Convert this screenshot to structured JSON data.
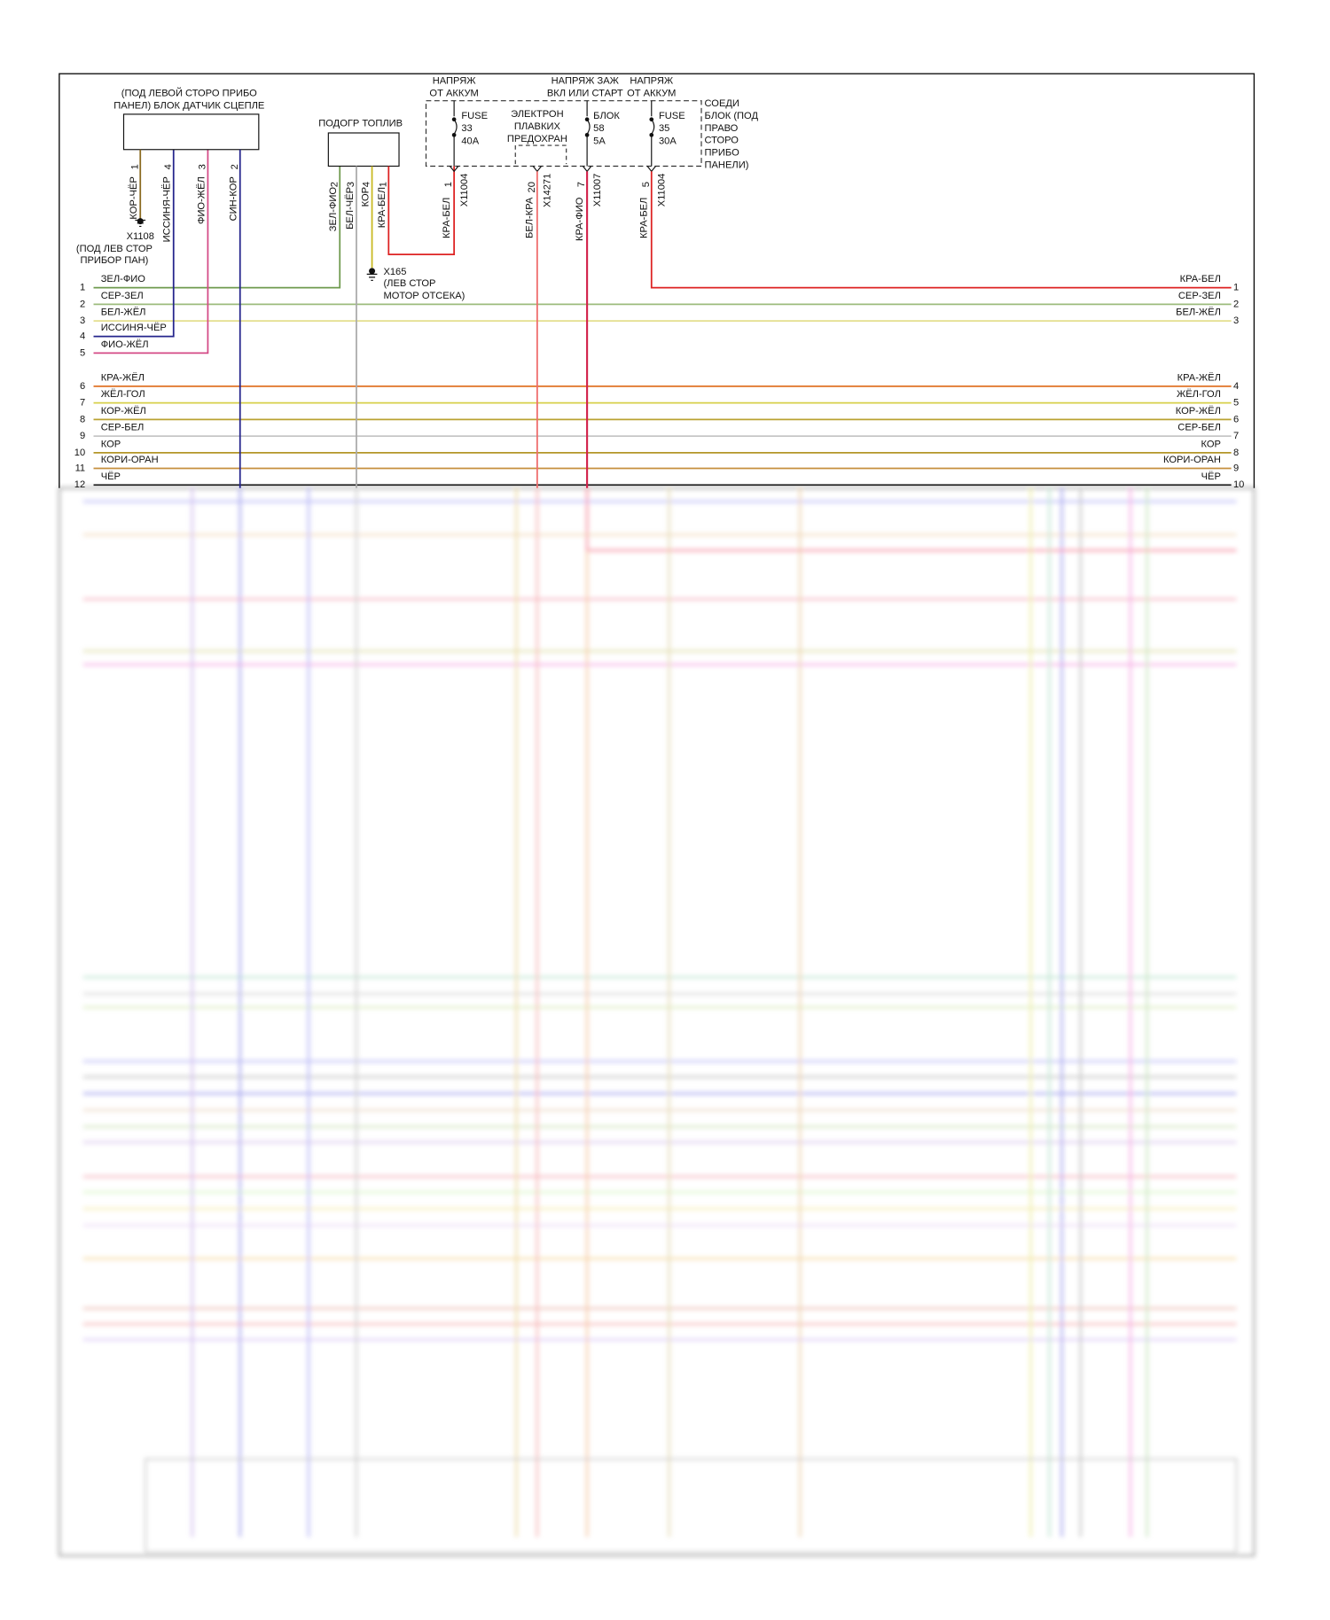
{
  "clutch_switch": {
    "label": [
      "(ПОД ЛЕВОЙ СТОРО ПРИБО",
      "ПАНЕЛ) БЛОК ДАТЧИК СЦЕПЛЕ"
    ],
    "pins": [
      {
        "pin": "1",
        "wire": "КОР-ЧЁР"
      },
      {
        "pin": "4",
        "wire": "ИССИНЯ-ЧЁР"
      },
      {
        "pin": "3",
        "wire": "ФИО-ЖЁЛ"
      },
      {
        "pin": "2",
        "wire": "СИН-КОР"
      }
    ]
  },
  "ground_x1108": {
    "id": "X1108",
    "label": [
      "(ПОД ЛЕВ СТОР",
      "ПРИБОР ПАН)"
    ]
  },
  "fuel_heater": {
    "label": "ПОДОГР ТОПЛИВ",
    "pins": [
      {
        "pin": "2",
        "wire": "ЗЕЛ-ФИО"
      },
      {
        "pin": "3",
        "wire": "БЕЛ-ЧЁР"
      },
      {
        "pin": "4",
        "wire": "КОР"
      },
      {
        "pin": "1",
        "wire": "КРА-БЕЛ"
      }
    ]
  },
  "ground_x165": {
    "id": "X165",
    "label": [
      "(ЛЕВ СТОР",
      "МОТОР ОТСЕКА)"
    ]
  },
  "fuse_box": {
    "supplies": [
      [
        "НАПРЯЖ",
        "ОТ АККУМ"
      ],
      [
        "НАПРЯЖ ЗАЖ",
        "ВКЛ ИЛИ СТАРТ"
      ],
      [
        "НАПРЯЖ",
        "ОТ АККУМ"
      ]
    ],
    "label": [
      "СОЕДИ",
      "БЛОК (ПОД",
      "ПРАВО",
      "СТОРО",
      "ПРИБО",
      "ПАНЕЛИ)"
    ],
    "fuses": [
      [
        "FUSE",
        "33",
        "40A"
      ],
      [
        "ЭЛЕКТРОН",
        "ПЛАВКИХ",
        "ПРЕДОХРАН"
      ],
      [
        "БЛОК",
        "58",
        "5A"
      ],
      [
        "FUSE",
        "35",
        "30A"
      ]
    ],
    "outputs": [
      {
        "pin": "1",
        "connector": "X11004",
        "wire": "КРА-БЕЛ"
      },
      {
        "pin": "20",
        "connector": "X14271",
        "wire": "БЕЛ-КРА"
      },
      {
        "pin": "7",
        "connector": "X11007",
        "wire": "КРА-ФИО"
      },
      {
        "pin": "5",
        "connector": "X11004",
        "wire": "КРА-БЕЛ"
      }
    ]
  },
  "left_connector": [
    {
      "pin": "1",
      "wire": "ЗЕЛ-ФИО",
      "color": "#6f9a4e"
    },
    {
      "pin": "2",
      "wire": "СЕР-ЗЕЛ",
      "color": "#9cbc7c"
    },
    {
      "pin": "3",
      "wire": "БЕЛ-ЖЁЛ",
      "color": "#e4df8e"
    },
    {
      "pin": "4",
      "wire": "ИССИНЯ-ЧЁР",
      "color": "#24248c"
    },
    {
      "pin": "5",
      "wire": "ФИО-ЖЁЛ",
      "color": "#d44a86"
    },
    {
      "pin": "6",
      "wire": "КРА-ЖЁЛ",
      "color": "#e07326"
    },
    {
      "pin": "7",
      "wire": "ЖЁЛ-ГОЛ",
      "color": "#d7d04a"
    },
    {
      "pin": "8",
      "wire": "КОР-ЖЁЛ",
      "color": "#b9a232"
    },
    {
      "pin": "9",
      "wire": "СЕР-БЕЛ",
      "color": "#c6c6c6"
    },
    {
      "pin": "10",
      "wire": "КОР",
      "color": "#b39628"
    },
    {
      "pin": "11",
      "wire": "КОРИ-ОРАН",
      "color": "#c58f3e"
    },
    {
      "pin": "12",
      "wire": "ЧЁР",
      "color": "#222222"
    }
  ],
  "right_connector": [
    {
      "pin": "1",
      "wire": "КРА-БЕЛ"
    },
    {
      "pin": "2",
      "wire": "СЕР-ЗЕЛ"
    },
    {
      "pin": "3",
      "wire": "БЕЛ-ЖЁЛ"
    },
    {
      "pin": "4",
      "wire": "КРА-ЖЁЛ"
    },
    {
      "pin": "5",
      "wire": "ЖЁЛ-ГОЛ"
    },
    {
      "pin": "6",
      "wire": "КОР-ЖЁЛ"
    },
    {
      "pin": "7",
      "wire": "СЕР-БЕЛ"
    },
    {
      "pin": "8",
      "wire": "КОР"
    },
    {
      "pin": "9",
      "wire": "КОРИ-ОРАН"
    },
    {
      "pin": "10",
      "wire": "ЧЁР"
    }
  ]
}
